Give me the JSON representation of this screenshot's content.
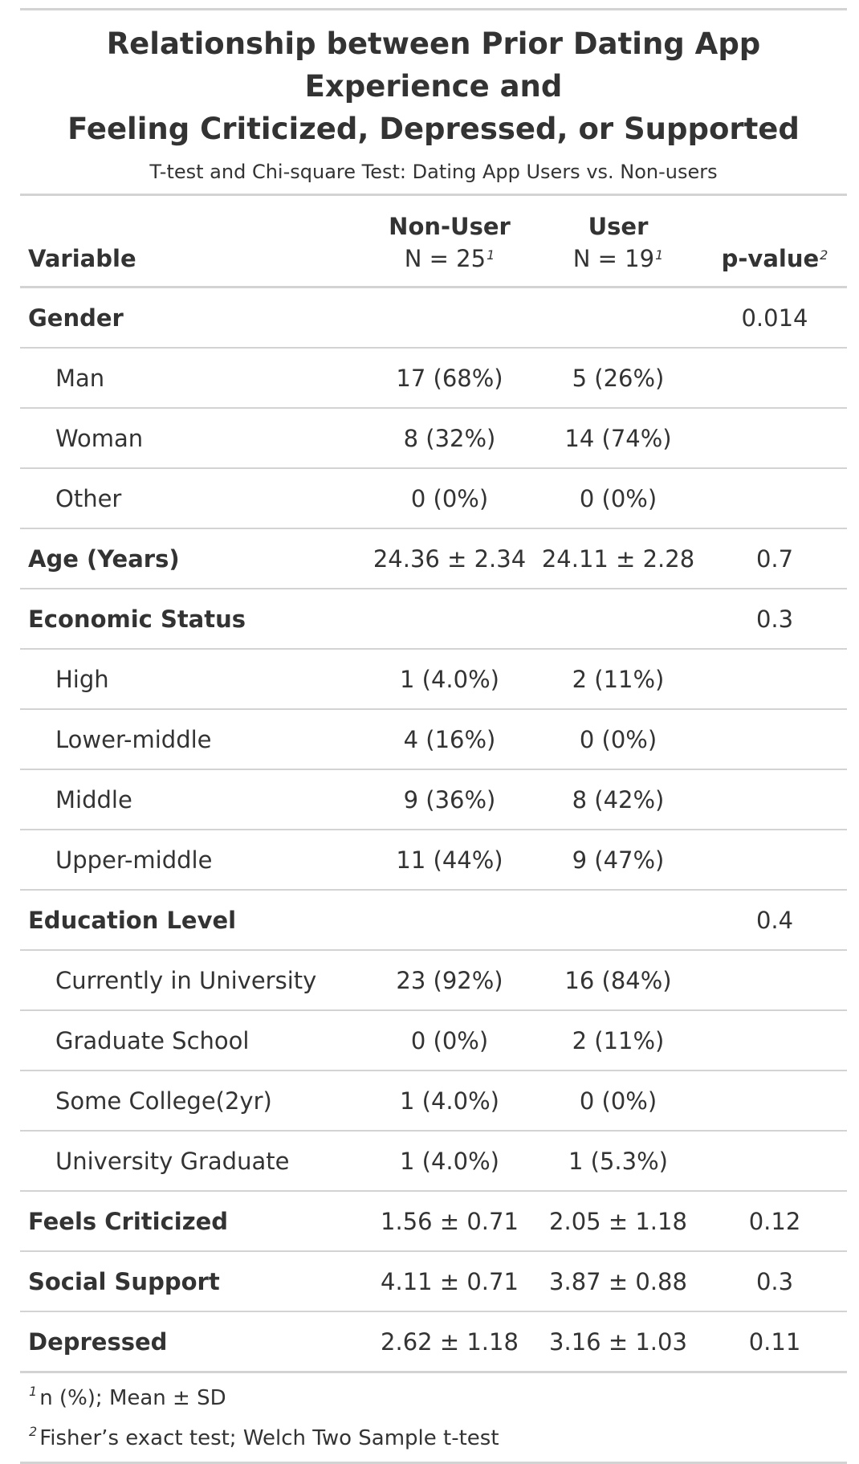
{
  "title_line1": "Relationship between Prior Dating App Experience and",
  "title_line2": "Feeling Criticized, Depressed, or Supported",
  "subtitle": "T-test and Chi-square Test: Dating App Users vs. Non-users",
  "columns": {
    "variable": "Variable",
    "nonuser_label": "Non-User",
    "nonuser_n": "N = 25",
    "nonuser_sup": "1",
    "user_label": "User",
    "user_n": "N = 19",
    "user_sup": "1",
    "pvalue": "p-value",
    "pvalue_sup": "2"
  },
  "rows": [
    {
      "label": "Gender",
      "nonuser": "",
      "user": "",
      "p": "0.014"
    },
    {
      "label": "Man",
      "nonuser": "17 (68%)",
      "user": "5 (26%)",
      "p": ""
    },
    {
      "label": "Woman",
      "nonuser": "8 (32%)",
      "user": "14 (74%)",
      "p": ""
    },
    {
      "label": "Other",
      "nonuser": "0 (0%)",
      "user": "0 (0%)",
      "p": ""
    },
    {
      "label": "Age (Years)",
      "nonuser": "24.36 ± 2.34",
      "user": "24.11 ± 2.28",
      "p": "0.7"
    },
    {
      "label": "Economic Status",
      "nonuser": "",
      "user": "",
      "p": "0.3"
    },
    {
      "label": "High",
      "nonuser": "1 (4.0%)",
      "user": "2 (11%)",
      "p": ""
    },
    {
      "label": "Lower-middle",
      "nonuser": "4 (16%)",
      "user": "0 (0%)",
      "p": ""
    },
    {
      "label": "Middle",
      "nonuser": "9 (36%)",
      "user": "8 (42%)",
      "p": ""
    },
    {
      "label": "Upper-middle",
      "nonuser": "11 (44%)",
      "user": "9 (47%)",
      "p": ""
    },
    {
      "label": "Education Level",
      "nonuser": "",
      "user": "",
      "p": "0.4"
    },
    {
      "label": "Currently in University",
      "nonuser": "23 (92%)",
      "user": "16 (84%)",
      "p": ""
    },
    {
      "label": "Graduate School",
      "nonuser": "0 (0%)",
      "user": "2 (11%)",
      "p": ""
    },
    {
      "label": "Some College(2yr)",
      "nonuser": "1 (4.0%)",
      "user": "0 (0%)",
      "p": ""
    },
    {
      "label": "University Graduate",
      "nonuser": "1 (4.0%)",
      "user": "1 (5.3%)",
      "p": ""
    },
    {
      "label": "Feels Criticized",
      "nonuser": "1.56 ± 0.71",
      "user": "2.05 ± 1.18",
      "p": "0.12"
    },
    {
      "label": "Social Support",
      "nonuser": "4.11 ± 0.71",
      "user": "3.87 ± 0.88",
      "p": "0.3"
    },
    {
      "label": "Depressed",
      "nonuser": "2.62 ± 1.18",
      "user": "3.16 ± 1.03",
      "p": "0.11"
    }
  ],
  "footnotes": [
    {
      "mark": "1",
      "text": "n (%); Mean ± SD"
    },
    {
      "mark": "2",
      "text": "Fisher’s exact test; Welch Two Sample t-test"
    }
  ]
}
